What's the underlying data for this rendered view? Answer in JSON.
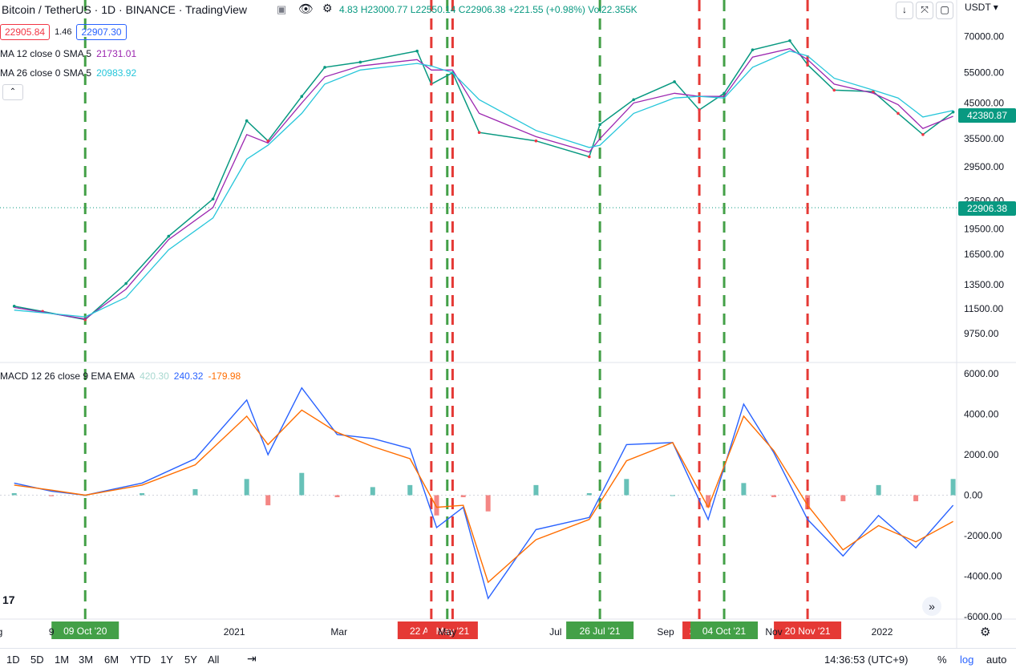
{
  "header": {
    "title": "Bitcoin / TetherUS · 1D · BINANCE · TradingView",
    "values": "4.83 H23000.77 L22550.14 C22906.38 +221.55 (+0.98%) Vol22.355K",
    "currency": "USDT"
  },
  "legend": {
    "sell_price": "22905.84",
    "spread": "1.46",
    "buy_price": "22907.30",
    "ma12_label": "MA 12 close 0 SMA 5",
    "ma12_value": "21731.01",
    "ma26_label": "MA 26 close 0 SMA 5",
    "ma26_value": "20983.92",
    "macd_label": "MACD 12 26 close 9 EMA EMA",
    "macd_hist": "420.30",
    "macd_line": "240.32",
    "macd_signal": "-179.98"
  },
  "price_labels": {
    "current": "42380.87",
    "crosshair": "22906.38"
  },
  "timeframes": [
    "1D",
    "5D",
    "1M",
    "3M",
    "6M",
    "YTD",
    "1Y",
    "5Y",
    "All"
  ],
  "status": {
    "time": "14:36:53 (UTC+9)",
    "percent": "%",
    "log": "log",
    "auto": "auto"
  },
  "colors": {
    "up": "#089981",
    "down": "#f23645",
    "ma12": "#9c27b0",
    "ma26": "#26c6da",
    "macd": "#2962ff",
    "signal": "#ff6d00",
    "buy": "#43a047",
    "sell": "#e53935"
  },
  "chart_data": [
    {
      "type": "line",
      "title": "Bitcoin / TetherUS",
      "scale": "log",
      "y_ticks": [
        70000,
        55000,
        45000,
        35500,
        29500,
        23500,
        19500,
        16500,
        13500,
        11500,
        9750
      ],
      "x_ticks": [
        "g",
        "9",
        "2021",
        "Mar",
        "May",
        "Jul",
        "Sep",
        "Nov",
        "2022"
      ],
      "x": [
        "2020-08-30",
        "2020-09-15",
        "2020-10-09",
        "2020-11-01",
        "2020-11-25",
        "2020-12-20",
        "2021-01-08",
        "2021-01-20",
        "2021-02-08",
        "2021-02-21",
        "2021-03-13",
        "2021-04-14",
        "2021-04-22",
        "2021-05-04",
        "2021-05-19",
        "2021-06-20",
        "2021-07-20",
        "2021-07-26",
        "2021-08-14",
        "2021-09-06",
        "2021-09-20",
        "2021-10-04",
        "2021-10-20",
        "2021-11-10",
        "2021-11-20",
        "2021-12-05",
        "2021-12-27",
        "2022-01-10",
        "2022-01-24",
        "2022-02-10"
      ],
      "series": [
        {
          "name": "Close",
          "values": [
            11700,
            11300,
            10700,
            13600,
            18600,
            23800,
            40000,
            35000,
            47000,
            57000,
            59000,
            63500,
            51000,
            55000,
            37000,
            35000,
            31500,
            39000,
            46000,
            51800,
            43000,
            48000,
            64000,
            68000,
            58000,
            49000,
            48500,
            42000,
            36500,
            42380
          ]
        },
        {
          "name": "MA 12",
          "values": [
            11600,
            11250,
            10750,
            13100,
            18200,
            22500,
            36500,
            34500,
            45000,
            53500,
            57500,
            60000,
            56000,
            56000,
            42000,
            36000,
            32500,
            35500,
            45000,
            48000,
            47000,
            47000,
            61000,
            64500,
            60000,
            51000,
            48000,
            44500,
            38000,
            41200
          ]
        },
        {
          "name": "MA 26",
          "values": [
            11400,
            11200,
            10900,
            12400,
            17000,
            21000,
            31000,
            34000,
            42000,
            51000,
            56000,
            58500,
            57500,
            55000,
            46000,
            37500,
            33500,
            34000,
            42000,
            46500,
            47000,
            46500,
            57000,
            63500,
            61500,
            53000,
            49000,
            46500,
            41000,
            42800
          ]
        }
      ],
      "markers": [
        {
          "label": "09 Oct '20",
          "kind": "buy",
          "x": "2020-10-09"
        },
        {
          "label": "22 Apr '21",
          "kind": "sell",
          "x": "2021-04-22"
        },
        {
          "label": "",
          "kind": "buy",
          "x": "2021-05-01"
        },
        {
          "label": "May '21",
          "kind": "sell",
          "x": "2021-05-04"
        },
        {
          "label": "26 Jul '21",
          "kind": "buy",
          "x": "2021-07-26"
        },
        {
          "label": "20 S",
          "kind": "sell",
          "x": "2021-09-20"
        },
        {
          "label": "04 Oct '21",
          "kind": "buy",
          "x": "2021-10-04"
        },
        {
          "label": "20 Nov '21",
          "kind": "sell",
          "x": "2021-11-20"
        }
      ]
    },
    {
      "type": "line",
      "title": "MACD 12 26 close 9 EMA EMA",
      "ylim": [
        -6000,
        6000
      ],
      "y_ticks": [
        6000,
        4000,
        2000,
        0,
        -2000,
        -4000,
        -6000
      ],
      "x": [
        "2020-08-30",
        "2020-09-20",
        "2020-10-09",
        "2020-11-10",
        "2020-12-10",
        "2021-01-08",
        "2021-01-20",
        "2021-02-08",
        "2021-02-28",
        "2021-03-20",
        "2021-04-10",
        "2021-04-25",
        "2021-05-10",
        "2021-05-24",
        "2021-06-20",
        "2021-07-20",
        "2021-08-10",
        "2021-09-05",
        "2021-09-25",
        "2021-10-15",
        "2021-11-01",
        "2021-11-20",
        "2021-12-10",
        "2021-12-30",
        "2022-01-20",
        "2022-02-10"
      ],
      "series": [
        {
          "name": "MACD",
          "values": [
            600,
            200,
            0,
            600,
            1800,
            4700,
            2000,
            5300,
            3000,
            2800,
            2300,
            -1600,
            -600,
            -5100,
            -1700,
            -1100,
            2500,
            2600,
            -1200,
            4500,
            2100,
            -1200,
            -3000,
            -1000,
            -2600,
            -500
          ]
        },
        {
          "name": "Signal",
          "values": [
            500,
            250,
            0,
            500,
            1500,
            3900,
            2500,
            4200,
            3100,
            2400,
            1800,
            -600,
            -500,
            -4300,
            -2200,
            -1200,
            1700,
            2600,
            -600,
            3900,
            2200,
            -500,
            -2700,
            -1500,
            -2300,
            -1300
          ]
        },
        {
          "name": "Histogram",
          "values": [
            100,
            -50,
            0,
            100,
            300,
            800,
            -500,
            1100,
            -100,
            400,
            500,
            -1000,
            -100,
            -800,
            500,
            100,
            800,
            0,
            -600,
            600,
            -100,
            -700,
            -300,
            500,
            -300,
            800
          ]
        }
      ]
    }
  ]
}
